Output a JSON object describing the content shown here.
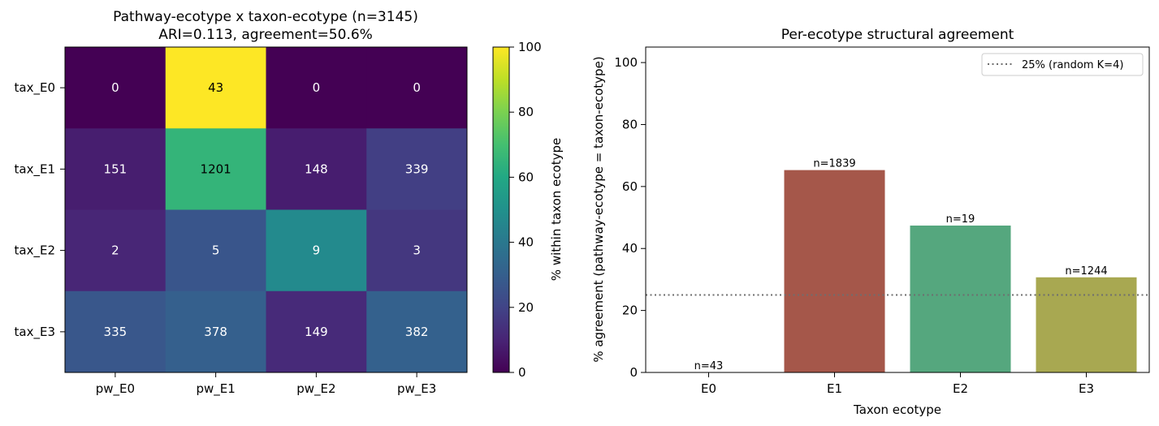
{
  "chart_data": [
    {
      "type": "heatmap",
      "title_line1": "Pathway-ecotype x taxon-ecotype (n=3145)",
      "title_line2": "ARI=0.113, agreement=50.6%",
      "x_categories": [
        "pw_E0",
        "pw_E1",
        "pw_E2",
        "pw_E3"
      ],
      "y_categories": [
        "tax_E0",
        "tax_E1",
        "tax_E2",
        "tax_E3"
      ],
      "counts": [
        [
          0,
          43,
          0,
          0
        ],
        [
          151,
          1201,
          148,
          339
        ],
        [
          2,
          5,
          9,
          3
        ],
        [
          335,
          378,
          149,
          382
        ]
      ],
      "colorbar": {
        "label": "% within taxon ecotype",
        "range": [
          0,
          100
        ],
        "ticks": [
          "0",
          "20",
          "40",
          "60",
          "80",
          "100"
        ],
        "colormap": "viridis"
      }
    },
    {
      "type": "bar",
      "title": "Per-ecotype structural agreement",
      "xlabel": "Taxon ecotype",
      "ylabel": "% agreement (pathway-ecotype = taxon-ecotype)",
      "categories": [
        "E0",
        "E1",
        "E2",
        "E3"
      ],
      "values": [
        0,
        65.3,
        47.4,
        30.7
      ],
      "bar_labels": [
        "n=43",
        "n=1839",
        "n=19",
        "n=1244"
      ],
      "colors": [
        "#4c72b0",
        "#a5574a",
        "#55a77e",
        "#a8a851"
      ],
      "ylim": [
        0,
        105
      ],
      "yticks": [
        "0",
        "20",
        "40",
        "60",
        "80",
        "100"
      ],
      "reference_line": {
        "value": 25,
        "label": "25% (random K=4)",
        "color": "#6e6e6e"
      },
      "legend_position": "top-right"
    }
  ]
}
